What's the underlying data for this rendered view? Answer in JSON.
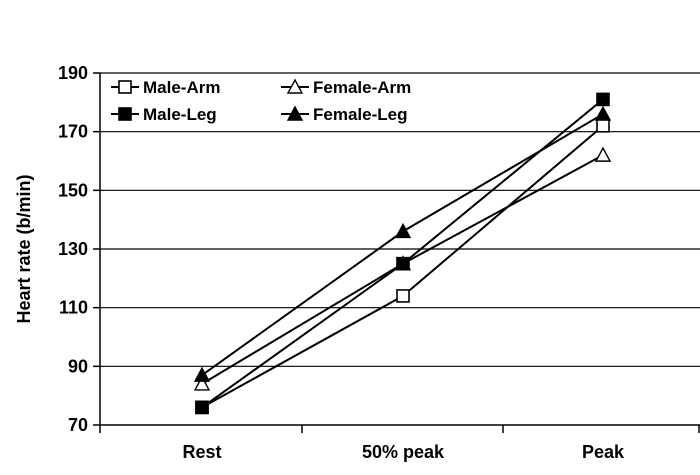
{
  "chart_data": {
    "type": "line",
    "title": "",
    "xlabel": "",
    "ylabel": "Heart rate (b/min)",
    "categories": [
      "Rest",
      "50% peak",
      "Peak"
    ],
    "ylim": [
      70,
      190
    ],
    "yticks": [
      70,
      90,
      110,
      130,
      150,
      170,
      190
    ],
    "grid": "horizontal",
    "legend_position": "top-left",
    "series": [
      {
        "name": "Male-Arm",
        "marker": "square-open",
        "values": [
          76,
          114,
          172
        ]
      },
      {
        "name": "Female-Arm",
        "marker": "triangle-open",
        "values": [
          84,
          125,
          162
        ]
      },
      {
        "name": "Male-Leg",
        "marker": "square-filled",
        "values": [
          76,
          125,
          181
        ]
      },
      {
        "name": "Female-Leg",
        "marker": "triangle-filled",
        "values": [
          87,
          136,
          176
        ]
      }
    ],
    "colors": {
      "line": "#000000",
      "grid": "#000000",
      "background": "#ffffff"
    }
  }
}
